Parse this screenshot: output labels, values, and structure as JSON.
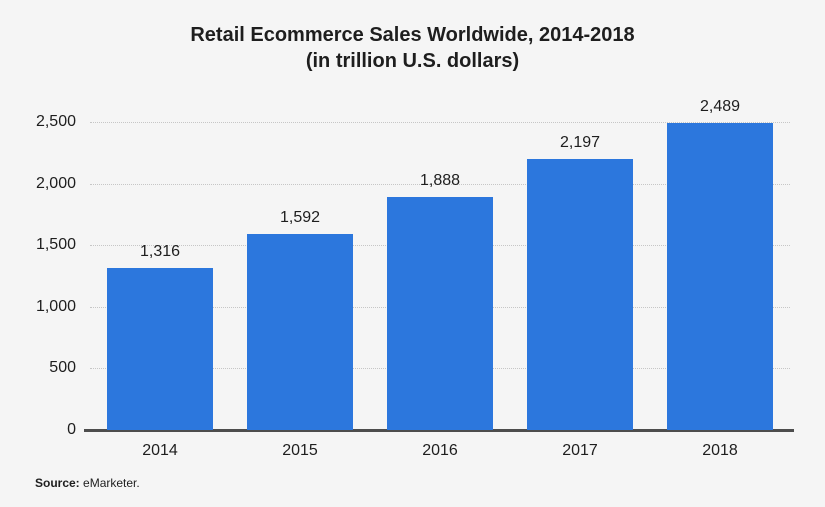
{
  "header": {
    "title": "Retail Ecommerce Sales Worldwide, 2014-2018",
    "subtitle": "(in trillion U.S. dollars)"
  },
  "source": {
    "label": "Source:",
    "text": " eMarketer."
  },
  "colors": {
    "background": "#f5f5f5",
    "bar": "#2c77dd",
    "axis": "#4d4d4d",
    "grid": "#c6c6c6",
    "text": "#1e1e1e"
  },
  "chart_data": {
    "type": "bar",
    "title": "Retail Ecommerce Sales Worldwide, 2014-2018",
    "subtitle": "(in trillion U.S. dollars)",
    "categories": [
      "2014",
      "2015",
      "2016",
      "2017",
      "2018"
    ],
    "values": [
      1316,
      1592,
      1888,
      2197,
      2489
    ],
    "value_labels": [
      "1,316",
      "1,592",
      "1,888",
      "2,197",
      "2,489"
    ],
    "xlabel": "",
    "ylabel": "",
    "ylim": [
      0,
      2500
    ],
    "yticks": [
      0,
      500,
      1000,
      1500,
      2000,
      2500
    ],
    "ytick_labels": [
      "0",
      "500",
      "1,000",
      "1,500",
      "2,000",
      "2,500"
    ],
    "grid": "horizontal-dotted",
    "legend": "none",
    "bar_color": "#2c77dd",
    "source": "Source: eMarketer."
  }
}
